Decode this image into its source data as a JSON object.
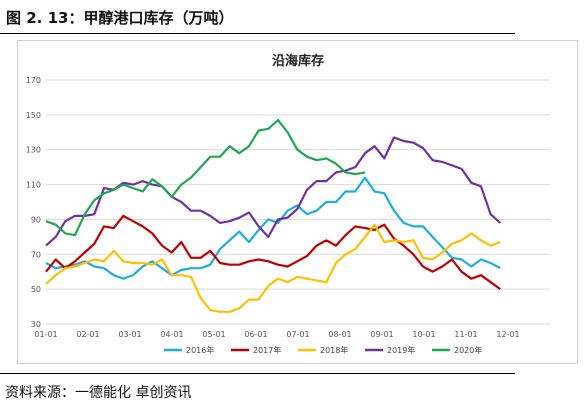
{
  "figure_title": "图 2. 13：甲醇港口库存（万吨）",
  "source_text": "资料来源：一德能化 卓创资讯",
  "chart_data": {
    "type": "line",
    "title": "沿海库存",
    "xlabel": "",
    "ylabel": "",
    "ylim": [
      30,
      170
    ],
    "yticks": [
      30,
      50,
      70,
      90,
      110,
      130,
      150,
      170
    ],
    "x_tick_labels": [
      "01-01",
      "02-01",
      "03-01",
      "04-01",
      "05-01",
      "06-01",
      "07-01",
      "08-01",
      "09-01",
      "10-01",
      "11-01",
      "12-01"
    ],
    "grid": true,
    "legend_position": "bottom",
    "series": [
      {
        "name": "2016年",
        "color": "#1CADE4",
        "values": [
          65,
          62,
          63,
          64,
          66,
          63,
          62,
          58,
          56,
          58,
          63,
          66,
          62,
          58,
          61,
          62,
          62,
          64,
          73,
          78,
          83,
          77,
          84,
          90,
          88,
          95,
          98,
          93,
          95,
          100,
          100,
          106,
          106,
          114,
          106,
          105,
          95,
          88,
          86,
          86,
          80,
          74,
          68,
          67,
          63,
          67,
          65,
          62
        ]
      },
      {
        "name": "2017年",
        "color": "#C00000",
        "values": [
          60,
          67,
          62,
          66,
          71,
          76,
          86,
          85,
          92,
          89,
          86,
          82,
          75,
          71,
          77,
          68,
          68,
          72,
          65,
          64,
          64,
          66,
          67,
          66,
          64,
          63,
          66,
          69,
          75,
          78,
          75,
          81,
          86,
          85,
          84,
          87,
          79,
          75,
          70,
          63,
          60,
          63,
          67,
          60,
          56,
          58,
          54,
          50
        ]
      },
      {
        "name": "2018年",
        "color": "#FFC000",
        "values": [
          53,
          58,
          62,
          63,
          65,
          67,
          66,
          72,
          66,
          65,
          65,
          64,
          67,
          58,
          58,
          57,
          45,
          38,
          37,
          37,
          39,
          44,
          44,
          52,
          56,
          54,
          57,
          56,
          55,
          54,
          65,
          70,
          73,
          80,
          87,
          77,
          78,
          77,
          78,
          68,
          67,
          71,
          76,
          78,
          82,
          78,
          75,
          77
        ]
      },
      {
        "name": "2019年",
        "color": "#7030A0",
        "values": [
          75,
          80,
          89,
          92,
          92,
          93,
          108,
          107,
          111,
          110,
          112,
          110,
          109,
          103,
          100,
          95,
          95,
          92,
          88,
          89,
          91,
          94,
          86,
          80,
          90,
          91,
          96,
          107,
          112,
          112,
          117,
          118,
          120,
          128,
          132,
          125,
          137,
          135,
          134,
          131,
          124,
          123,
          121,
          119,
          111,
          109,
          93,
          88
        ]
      },
      {
        "name": "2020年",
        "color": "#1FA84F",
        "values": [
          89,
          87,
          82,
          81,
          93,
          101,
          105,
          107,
          110,
          108,
          106,
          113,
          109,
          103,
          110,
          114,
          120,
          126,
          126,
          132,
          128,
          132,
          141,
          142,
          147,
          140,
          130,
          126,
          124,
          125,
          122,
          117,
          116,
          117
        ]
      }
    ]
  }
}
